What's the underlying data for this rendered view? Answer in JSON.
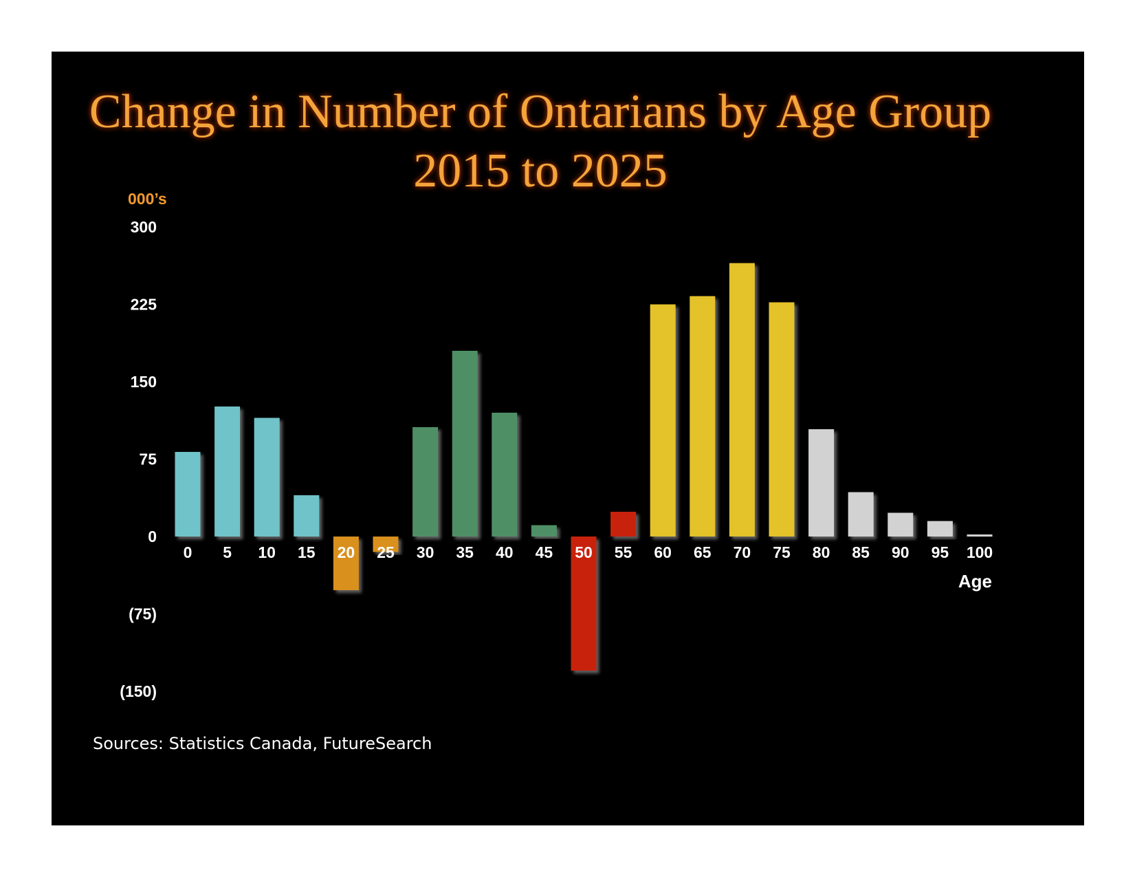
{
  "chart_data": {
    "type": "bar",
    "title": "Change in Number of Ontarians by Age Group",
    "subtitle": "2015 to 2025",
    "ylabel": "000’s",
    "xlabel": "Age",
    "ylim": [
      -150,
      300
    ],
    "yticks": [
      "300",
      "225",
      "150",
      "75",
      "0",
      "(75)",
      "(150)"
    ],
    "ytick_values": [
      300,
      225,
      150,
      75,
      0,
      -75,
      -150
    ],
    "categories": [
      "0",
      "5",
      "10",
      "15",
      "20",
      "25",
      "30",
      "35",
      "40",
      "45",
      "50",
      "55",
      "60",
      "65",
      "70",
      "75",
      "80",
      "85",
      "90",
      "95",
      "100"
    ],
    "values": [
      82,
      126,
      115,
      40,
      -52,
      -15,
      106,
      180,
      120,
      11,
      -130,
      24,
      225,
      233,
      265,
      227,
      104,
      43,
      23,
      15,
      2
    ],
    "bar_colors": [
      "#6fc3c8",
      "#6fc3c8",
      "#6fc3c8",
      "#6fc3c8",
      "#d9901a",
      "#d9901a",
      "#4f8f66",
      "#4f8f66",
      "#4f8f66",
      "#4f8f66",
      "#c8220a",
      "#c8220a",
      "#e3c229",
      "#e3c229",
      "#e3c229",
      "#e3c229",
      "#d2d2d2",
      "#d2d2d2",
      "#d2d2d2",
      "#d2d2d2",
      "#d2d2d2"
    ],
    "grid": false,
    "legend": "none",
    "source": "Sources: Statistics Canada, FutureSearch"
  },
  "colors": {
    "background": "#000000",
    "title": "#f3a43a",
    "unit_label": "#f39a2e",
    "axis_text": "#ffffff"
  }
}
